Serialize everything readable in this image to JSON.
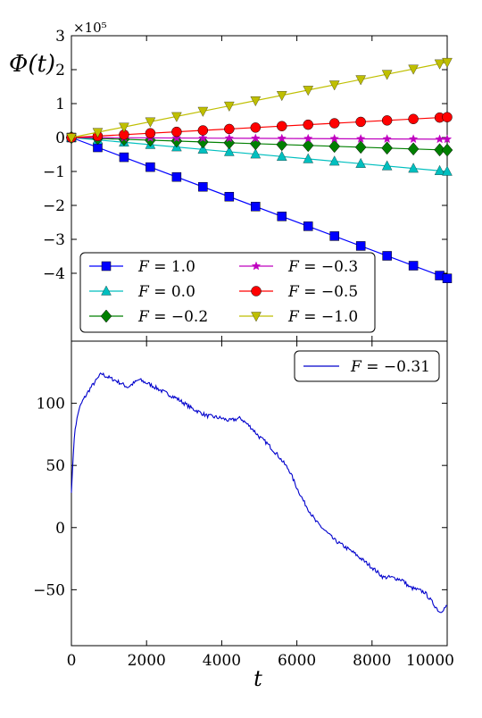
{
  "chart_data": [
    {
      "type": "line",
      "ylabel": "Φ(t)",
      "y_multiplier": "×10⁵",
      "x_range": [
        0,
        10000
      ],
      "ylim": [
        -6,
        3
      ],
      "yticks": [
        3,
        2,
        1,
        0,
        -1,
        -2,
        -3,
        -4
      ],
      "ytick_labels": [
        "3",
        "2",
        "1",
        "0",
        "−1",
        "−2",
        "−3",
        "−4"
      ],
      "grid": false,
      "legend_position": "lower-left",
      "series": [
        {
          "name": "F = 1.0",
          "label_var": "F",
          "label_val": "= 1.0",
          "color": "#0000ff",
          "marker": "square",
          "end_value": -4.15
        },
        {
          "name": "F = 0.0",
          "label_var": "F",
          "label_val": "= 0.0",
          "color": "#00bfbf",
          "marker": "triangle",
          "end_value": -1.0
        },
        {
          "name": "F = −0.2",
          "label_var": "F",
          "label_val": "= −0.2",
          "color": "#008000",
          "marker": "diamond",
          "end_value": -0.37
        },
        {
          "name": "F = −0.3",
          "label_var": "F",
          "label_val": "= −0.3",
          "color": "#bf00bf",
          "marker": "star",
          "end_value": -0.05
        },
        {
          "name": "F = −0.5",
          "label_var": "F",
          "label_val": "= −0.5",
          "color": "#ff0000",
          "marker": "circle",
          "end_value": 0.6
        },
        {
          "name": "F = −1.0",
          "label_var": "F",
          "label_val": "= −1.0",
          "color": "#bfbf00",
          "marker": "triangle-down",
          "end_value": 2.22
        }
      ]
    },
    {
      "type": "line",
      "xlabel": "t",
      "xlim": [
        0,
        10000
      ],
      "ylim": [
        -95,
        150
      ],
      "xticks": [
        0,
        2000,
        4000,
        6000,
        8000,
        10000
      ],
      "xtick_labels": [
        "0",
        "2000",
        "4000",
        "6000",
        "8000",
        "10000"
      ],
      "yticks": [
        100,
        50,
        0,
        -50
      ],
      "ytick_labels": [
        "100",
        "50",
        "0",
        "−50"
      ],
      "grid": false,
      "legend_position": "top-right",
      "series": [
        {
          "name": "F = −0.31",
          "label_var": "F",
          "label_val": "= −0.31",
          "color": "#0000cc",
          "x": [
            0,
            50,
            100,
            200,
            300,
            500,
            700,
            800,
            900,
            1200,
            1500,
            1800,
            2100,
            2400,
            2800,
            3200,
            3600,
            4000,
            4200,
            4500,
            4800,
            5000,
            5200,
            5500,
            5800,
            6000,
            6200,
            6500,
            7000,
            7500,
            8000,
            8300,
            8500,
            8800,
            9000,
            9200,
            9400,
            9600,
            9800,
            10000
          ],
          "y": [
            28,
            60,
            80,
            95,
            102,
            112,
            120,
            124,
            122,
            118,
            113,
            119,
            115,
            110,
            104,
            96,
            90,
            88,
            86,
            88,
            80,
            73,
            68,
            58,
            46,
            32,
            20,
            5,
            -10,
            -20,
            -32,
            -40,
            -40,
            -42,
            -48,
            -50,
            -52,
            -60,
            -68,
            -63
          ]
        }
      ]
    }
  ]
}
